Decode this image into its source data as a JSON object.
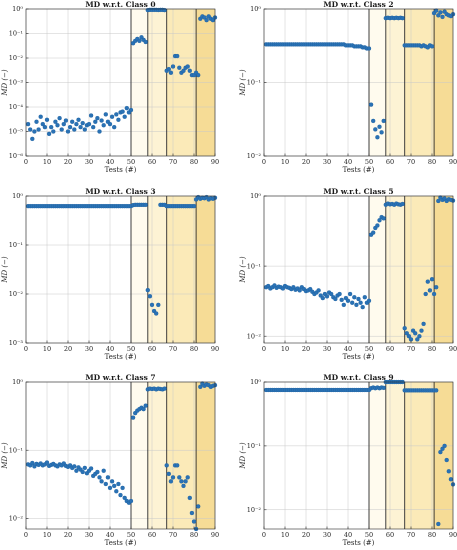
{
  "figure": {
    "colors": {
      "point": "#2a72b5",
      "point_edge": "#1a5a98",
      "grid": "#c8c8c8",
      "axis": "#262626",
      "band_1": "#fffbee",
      "band_2": "#fdf3d4",
      "band_3": "#fbeab8",
      "band_4": "#f6dc96",
      "boundary": "#2b2b2b"
    }
  },
  "chart_data": [
    {
      "type": "scatter",
      "title": "MD w.r.t. Class 0",
      "xlabel": "Tests (#)",
      "ylabel": "MD (−)",
      "xlim": [
        0,
        90
      ],
      "ylim": [
        1e-06,
        1
      ],
      "yscale": "log",
      "xticks": [
        0,
        10,
        20,
        30,
        40,
        50,
        60,
        70,
        80,
        90
      ],
      "yticks": [
        1e-06,
        1e-05,
        0.0001,
        0.001,
        0.01,
        0.1,
        1
      ],
      "yticklabels": [
        "10⁻⁶",
        "10⁻⁵",
        "10⁻⁴",
        "10⁻³",
        "10⁻²",
        "10⁻¹",
        "10⁰"
      ],
      "shaded_regions": [
        [
          50,
          58
        ],
        [
          58,
          67
        ],
        [
          67,
          81
        ],
        [
          81,
          90
        ]
      ],
      "x": [
        1,
        2,
        3,
        4,
        5,
        6,
        7,
        8,
        9,
        10,
        11,
        12,
        13,
        14,
        15,
        16,
        17,
        18,
        19,
        20,
        21,
        22,
        23,
        24,
        25,
        26,
        27,
        28,
        29,
        30,
        31,
        32,
        33,
        34,
        35,
        36,
        37,
        38,
        39,
        40,
        41,
        42,
        43,
        44,
        45,
        46,
        47,
        48,
        49,
        50,
        51,
        52,
        53,
        54,
        55,
        56,
        57,
        58,
        59,
        60,
        61,
        62,
        63,
        64,
        65,
        66,
        67,
        68,
        69,
        70,
        71,
        72,
        73,
        74,
        75,
        76,
        77,
        78,
        79,
        80,
        81,
        82,
        83,
        84,
        85,
        86,
        87,
        88,
        89,
        90
      ],
      "y": [
        2e-05,
        1.2e-05,
        5e-06,
        1e-05,
        2.5e-05,
        1.2e-05,
        4e-05,
        2e-05,
        1.5e-05,
        3e-05,
        8e-06,
        1.5e-05,
        1e-05,
        2.5e-05,
        1.8e-05,
        3.5e-05,
        1.2e-05,
        2e-05,
        2.8e-05,
        1e-05,
        1.5e-05,
        2.5e-05,
        1.2e-05,
        2e-05,
        3e-05,
        1.5e-05,
        2.2e-05,
        1.2e-05,
        1.8e-05,
        2e-05,
        4.5e-05,
        1.5e-05,
        2.5e-05,
        3.5e-05,
        1e-05,
        2.8e-05,
        1.8e-05,
        5e-05,
        2.5e-05,
        2e-05,
        4e-05,
        1.5e-05,
        5e-05,
        3e-05,
        6e-05,
        6.5e-05,
        4e-05,
        9e-05,
        6e-05,
        7.5e-05,
        0.04,
        0.05,
        0.06,
        0.05,
        0.07,
        0.055,
        0.045,
        0.9,
        0.92,
        0.92,
        0.92,
        0.92,
        0.91,
        0.92,
        0.92,
        0.9,
        0.003,
        0.0035,
        0.0025,
        0.0045,
        0.012,
        0.012,
        0.004,
        0.0025,
        0.003,
        0.004,
        0.0045,
        0.003,
        0.002,
        0.002,
        0.0025,
        0.002,
        0.4,
        0.5,
        0.45,
        0.35,
        0.5,
        0.4,
        0.35,
        0.45
      ]
    },
    {
      "type": "scatter",
      "title": "MD w.r.t. Class 2",
      "xlabel": "Tests (#)",
      "ylabel": "MD (−)",
      "xlim": [
        0,
        90
      ],
      "ylim": [
        0.01,
        1
      ],
      "yscale": "log",
      "xticks": [
        0,
        10,
        20,
        30,
        40,
        50,
        60,
        70,
        80,
        90
      ],
      "yticks": [
        0.01,
        0.1,
        1
      ],
      "yticklabels": [
        "10⁻²",
        "10⁻¹",
        "10⁰"
      ],
      "shaded_regions": [
        [
          50,
          58
        ],
        [
          58,
          67
        ],
        [
          67,
          81
        ],
        [
          81,
          90
        ]
      ],
      "x": [
        1,
        2,
        3,
        4,
        5,
        6,
        7,
        8,
        9,
        10,
        11,
        12,
        13,
        14,
        15,
        16,
        17,
        18,
        19,
        20,
        21,
        22,
        23,
        24,
        25,
        26,
        27,
        28,
        29,
        30,
        31,
        32,
        33,
        34,
        35,
        36,
        37,
        38,
        39,
        40,
        41,
        42,
        43,
        44,
        45,
        46,
        47,
        48,
        49,
        50,
        51,
        52,
        53,
        54,
        55,
        56,
        57,
        58,
        59,
        60,
        61,
        62,
        63,
        64,
        65,
        66,
        67,
        68,
        69,
        70,
        71,
        72,
        73,
        74,
        75,
        76,
        77,
        78,
        79,
        80,
        81,
        82,
        83,
        84,
        85,
        86,
        87,
        88,
        89,
        90
      ],
      "y": [
        0.33,
        0.33,
        0.33,
        0.33,
        0.33,
        0.33,
        0.33,
        0.33,
        0.33,
        0.33,
        0.33,
        0.33,
        0.33,
        0.33,
        0.33,
        0.33,
        0.33,
        0.33,
        0.33,
        0.33,
        0.33,
        0.33,
        0.33,
        0.33,
        0.33,
        0.33,
        0.33,
        0.33,
        0.33,
        0.33,
        0.33,
        0.33,
        0.33,
        0.33,
        0.33,
        0.33,
        0.33,
        0.33,
        0.32,
        0.32,
        0.32,
        0.32,
        0.31,
        0.31,
        0.31,
        0.31,
        0.3,
        0.3,
        0.29,
        0.29,
        0.05,
        0.03,
        0.023,
        0.018,
        0.025,
        0.021,
        0.03,
        0.75,
        0.76,
        0.75,
        0.76,
        0.75,
        0.76,
        0.75,
        0.76,
        0.75,
        0.32,
        0.32,
        0.32,
        0.32,
        0.32,
        0.32,
        0.32,
        0.32,
        0.31,
        0.32,
        0.31,
        0.3,
        0.32,
        0.31,
        0.88,
        0.95,
        0.82,
        0.9,
        0.78,
        0.92,
        0.85,
        0.82,
        0.8,
        0.85
      ]
    },
    {
      "type": "scatter",
      "title": "MD w.r.t. Class 3",
      "xlabel": "Tests (#)",
      "ylabel": "MD (−)",
      "xlim": [
        0,
        90
      ],
      "ylim": [
        0.001,
        1
      ],
      "yscale": "log",
      "xticks": [
        0,
        10,
        20,
        30,
        40,
        50,
        60,
        70,
        80,
        90
      ],
      "yticks": [
        0.001,
        0.01,
        0.1,
        1
      ],
      "yticklabels": [
        "10⁻³",
        "10⁻²",
        "10⁻¹",
        "10⁰"
      ],
      "shaded_regions": [
        [
          50,
          58
        ],
        [
          58,
          67
        ],
        [
          67,
          81
        ],
        [
          81,
          90
        ]
      ],
      "x": [
        1,
        2,
        3,
        4,
        5,
        6,
        7,
        8,
        9,
        10,
        11,
        12,
        13,
        14,
        15,
        16,
        17,
        18,
        19,
        20,
        21,
        22,
        23,
        24,
        25,
        26,
        27,
        28,
        29,
        30,
        31,
        32,
        33,
        34,
        35,
        36,
        37,
        38,
        39,
        40,
        41,
        42,
        43,
        44,
        45,
        46,
        47,
        48,
        49,
        50,
        51,
        52,
        53,
        54,
        55,
        56,
        57,
        58,
        59,
        60,
        61,
        62,
        63,
        64,
        65,
        66,
        67,
        68,
        69,
        70,
        71,
        72,
        73,
        74,
        75,
        76,
        77,
        78,
        79,
        80,
        81,
        82,
        83,
        84,
        85,
        86,
        87,
        88,
        89,
        90
      ],
      "y": [
        0.62,
        0.62,
        0.62,
        0.62,
        0.62,
        0.62,
        0.62,
        0.62,
        0.62,
        0.62,
        0.62,
        0.62,
        0.62,
        0.62,
        0.62,
        0.62,
        0.62,
        0.62,
        0.62,
        0.62,
        0.62,
        0.62,
        0.62,
        0.62,
        0.62,
        0.62,
        0.62,
        0.62,
        0.62,
        0.62,
        0.62,
        0.62,
        0.62,
        0.62,
        0.62,
        0.62,
        0.62,
        0.62,
        0.62,
        0.62,
        0.62,
        0.62,
        0.62,
        0.62,
        0.62,
        0.62,
        0.62,
        0.62,
        0.62,
        0.62,
        0.65,
        0.66,
        0.66,
        0.66,
        0.66,
        0.66,
        0.66,
        0.012,
        0.009,
        0.006,
        0.0045,
        0.004,
        0.006,
        0.66,
        0.66,
        0.66,
        0.62,
        0.62,
        0.62,
        0.62,
        0.62,
        0.62,
        0.62,
        0.62,
        0.62,
        0.62,
        0.62,
        0.62,
        0.62,
        0.62,
        0.85,
        0.95,
        0.88,
        0.92,
        0.9,
        0.95,
        0.85,
        0.9,
        0.88,
        0.92
      ]
    },
    {
      "type": "scatter",
      "title": "MD w.r.t. Class 5",
      "xlabel": "Tests (#)",
      "ylabel": "MD (−)",
      "xlim": [
        0,
        90
      ],
      "ylim": [
        0.008,
        1
      ],
      "yscale": "log",
      "xticks": [
        0,
        10,
        20,
        30,
        40,
        50,
        60,
        70,
        80,
        90
      ],
      "yticks": [
        0.01,
        0.1,
        1
      ],
      "yticklabels": [
        "10⁻²",
        "10⁻¹",
        "10⁰"
      ],
      "shaded_regions": [
        [
          50,
          58
        ],
        [
          58,
          67
        ],
        [
          67,
          81
        ],
        [
          81,
          90
        ]
      ],
      "x": [
        1,
        2,
        3,
        4,
        5,
        6,
        7,
        8,
        9,
        10,
        11,
        12,
        13,
        14,
        15,
        16,
        17,
        18,
        19,
        20,
        21,
        22,
        23,
        24,
        25,
        26,
        27,
        28,
        29,
        30,
        31,
        32,
        33,
        34,
        35,
        36,
        37,
        38,
        39,
        40,
        41,
        42,
        43,
        44,
        45,
        46,
        47,
        48,
        49,
        50,
        51,
        52,
        53,
        54,
        55,
        56,
        57,
        58,
        59,
        60,
        61,
        62,
        63,
        64,
        65,
        66,
        67,
        68,
        69,
        70,
        71,
        72,
        73,
        74,
        75,
        76,
        77,
        78,
        79,
        80,
        81,
        82,
        83,
        84,
        85,
        86,
        87,
        88,
        89,
        90
      ],
      "y": [
        0.05,
        0.052,
        0.048,
        0.05,
        0.053,
        0.049,
        0.051,
        0.05,
        0.048,
        0.052,
        0.05,
        0.049,
        0.047,
        0.05,
        0.046,
        0.048,
        0.045,
        0.05,
        0.047,
        0.044,
        0.045,
        0.047,
        0.043,
        0.04,
        0.042,
        0.045,
        0.038,
        0.035,
        0.04,
        0.037,
        0.042,
        0.04,
        0.036,
        0.034,
        0.038,
        0.04,
        0.033,
        0.028,
        0.035,
        0.032,
        0.04,
        0.03,
        0.036,
        0.028,
        0.034,
        0.03,
        0.026,
        0.036,
        0.03,
        0.032,
        0.28,
        0.3,
        0.35,
        0.38,
        0.45,
        0.5,
        0.48,
        0.75,
        0.78,
        0.76,
        0.77,
        0.75,
        0.78,
        0.76,
        0.75,
        0.77,
        0.013,
        0.011,
        0.01,
        0.009,
        0.012,
        0.011,
        0.009,
        0.01,
        0.012,
        0.015,
        0.04,
        0.06,
        0.045,
        0.065,
        0.04,
        0.05,
        0.85,
        0.95,
        0.88,
        0.92,
        0.85,
        0.9,
        0.88,
        0.86
      ]
    },
    {
      "type": "scatter",
      "title": "MD w.r.t. Class 7",
      "xlabel": "Tests (#)",
      "ylabel": "MD (−)",
      "xlim": [
        0,
        90
      ],
      "ylim": [
        0.007,
        1
      ],
      "yscale": "log",
      "xticks": [
        0,
        10,
        20,
        30,
        40,
        50,
        60,
        70,
        80,
        90
      ],
      "yticks": [
        0.01,
        0.1,
        1
      ],
      "yticklabels": [
        "10⁻²",
        "10⁻¹",
        "10⁰"
      ],
      "shaded_regions": [
        [
          50,
          58
        ],
        [
          58,
          67
        ],
        [
          67,
          81
        ],
        [
          81,
          90
        ]
      ],
      "x": [
        1,
        2,
        3,
        4,
        5,
        6,
        7,
        8,
        9,
        10,
        11,
        12,
        13,
        14,
        15,
        16,
        17,
        18,
        19,
        20,
        21,
        22,
        23,
        24,
        25,
        26,
        27,
        28,
        29,
        30,
        31,
        32,
        33,
        34,
        35,
        36,
        37,
        38,
        39,
        40,
        41,
        42,
        43,
        44,
        45,
        46,
        47,
        48,
        49,
        50,
        51,
        52,
        53,
        54,
        55,
        56,
        57,
        58,
        59,
        60,
        61,
        62,
        63,
        64,
        65,
        66,
        67,
        68,
        69,
        70,
        71,
        72,
        73,
        74,
        75,
        76,
        77,
        78,
        79,
        80,
        81,
        82,
        83,
        84,
        85,
        86,
        87,
        88,
        89,
        90
      ],
      "y": [
        0.062,
        0.06,
        0.065,
        0.058,
        0.063,
        0.061,
        0.064,
        0.06,
        0.062,
        0.066,
        0.059,
        0.061,
        0.063,
        0.06,
        0.058,
        0.062,
        0.06,
        0.064,
        0.059,
        0.057,
        0.06,
        0.055,
        0.058,
        0.05,
        0.056,
        0.052,
        0.048,
        0.055,
        0.046,
        0.05,
        0.054,
        0.042,
        0.045,
        0.048,
        0.04,
        0.035,
        0.05,
        0.032,
        0.04,
        0.028,
        0.035,
        0.03,
        0.025,
        0.032,
        0.022,
        0.028,
        0.02,
        0.018,
        0.017,
        0.018,
        0.3,
        0.35,
        0.38,
        0.4,
        0.42,
        0.4,
        0.45,
        0.78,
        0.8,
        0.79,
        0.8,
        0.78,
        0.8,
        0.79,
        0.78,
        0.8,
        0.06,
        0.045,
        0.035,
        0.04,
        0.06,
        0.06,
        0.04,
        0.035,
        0.03,
        0.035,
        0.04,
        0.02,
        0.012,
        0.009,
        0.007,
        0.015,
        0.85,
        0.95,
        0.88,
        0.92,
        0.9,
        0.85,
        0.88,
        0.9
      ]
    },
    {
      "type": "scatter",
      "title": "MD w.r.t. Class 9",
      "xlabel": "Tests (#)",
      "ylabel": "MD (−)",
      "xlim": [
        0,
        90
      ],
      "ylim": [
        0.005,
        1
      ],
      "yscale": "log",
      "xticks": [
        0,
        10,
        20,
        30,
        40,
        50,
        60,
        70,
        80,
        90
      ],
      "yticks": [
        0.01,
        0.1,
        1
      ],
      "yticklabels": [
        "10⁻²",
        "10⁻¹",
        "10⁰"
      ],
      "shaded_regions": [
        [
          50,
          58
        ],
        [
          58,
          67
        ],
        [
          67,
          81
        ],
        [
          81,
          90
        ]
      ],
      "x": [
        1,
        2,
        3,
        4,
        5,
        6,
        7,
        8,
        9,
        10,
        11,
        12,
        13,
        14,
        15,
        16,
        17,
        18,
        19,
        20,
        21,
        22,
        23,
        24,
        25,
        26,
        27,
        28,
        29,
        30,
        31,
        32,
        33,
        34,
        35,
        36,
        37,
        38,
        39,
        40,
        41,
        42,
        43,
        44,
        45,
        46,
        47,
        48,
        49,
        50,
        51,
        52,
        53,
        54,
        55,
        56,
        57,
        58,
        59,
        60,
        61,
        62,
        63,
        64,
        65,
        66,
        67,
        68,
        69,
        70,
        71,
        72,
        73,
        74,
        75,
        76,
        77,
        78,
        79,
        80,
        81,
        82,
        83,
        84,
        85,
        86,
        87,
        88,
        89,
        90
      ],
      "y": [
        0.75,
        0.75,
        0.75,
        0.75,
        0.75,
        0.75,
        0.75,
        0.75,
        0.75,
        0.75,
        0.75,
        0.75,
        0.75,
        0.75,
        0.75,
        0.75,
        0.75,
        0.75,
        0.75,
        0.75,
        0.75,
        0.75,
        0.75,
        0.75,
        0.75,
        0.75,
        0.75,
        0.75,
        0.75,
        0.75,
        0.75,
        0.75,
        0.75,
        0.75,
        0.75,
        0.75,
        0.75,
        0.75,
        0.75,
        0.75,
        0.75,
        0.75,
        0.75,
        0.75,
        0.75,
        0.75,
        0.75,
        0.75,
        0.75,
        0.75,
        0.8,
        0.82,
        0.8,
        0.82,
        0.8,
        0.82,
        0.81,
        1.0,
        1.0,
        1.0,
        1.0,
        1.0,
        1.0,
        1.0,
        1.0,
        1.0,
        0.74,
        0.74,
        0.74,
        0.74,
        0.74,
        0.74,
        0.74,
        0.74,
        0.74,
        0.74,
        0.74,
        0.74,
        0.74,
        0.74,
        0.74,
        0.74,
        0.006,
        0.08,
        0.09,
        0.1,
        0.06,
        0.04,
        0.03,
        0.025
      ]
    }
  ]
}
